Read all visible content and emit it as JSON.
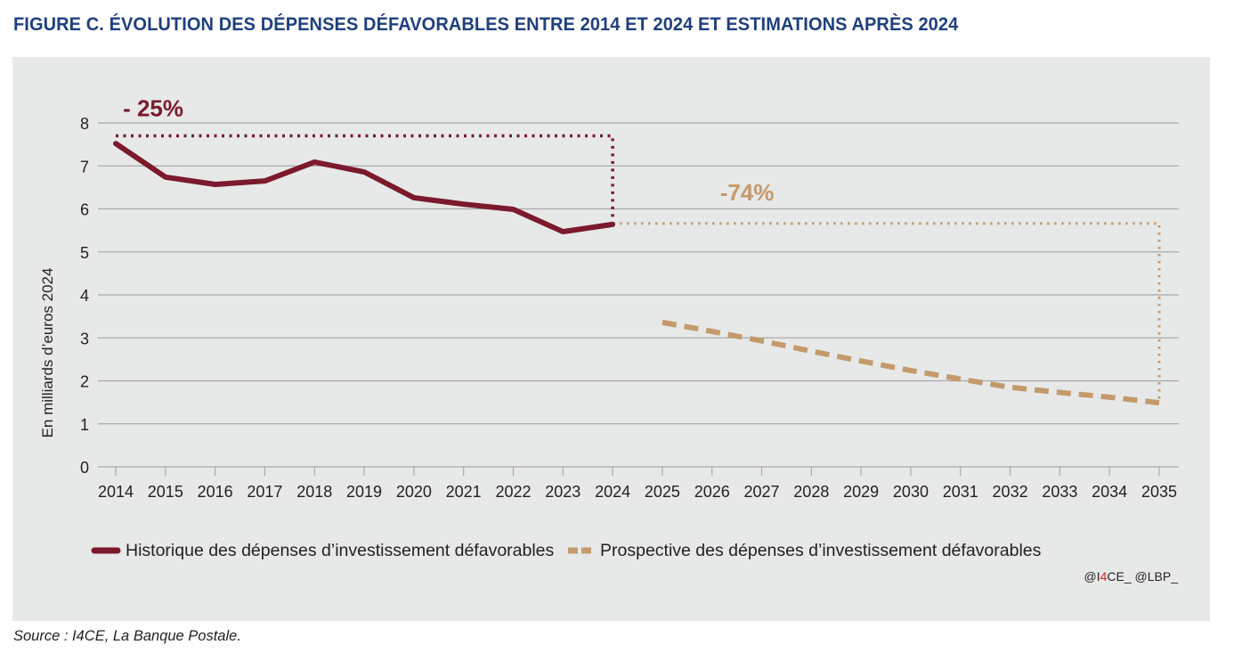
{
  "page": {
    "title": "FIGURE C. ÉVOLUTION DES DÉPENSES DÉFAVORABLES ENTRE 2014 ET 2024 ET ESTIMATIONS APRÈS 2024",
    "source": "Source : I4CE, La Banque Postale.",
    "credit": {
      "part1": "@I",
      "part2": "4",
      "part3": "CE_ @LBP_",
      "accent_color": "#d2232a"
    }
  },
  "chart_data": {
    "type": "line",
    "title": "FIGURE C. ÉVOLUTION DES DÉPENSES DÉFAVORABLES ENTRE 2014 ET 2024 ET ESTIMATIONS APRÈS 2024",
    "xlabel": "",
    "ylabel": "En milliards d’euros 2024",
    "ylim": [
      0,
      8
    ],
    "yticks": [
      0,
      1,
      2,
      3,
      4,
      5,
      6,
      7,
      8
    ],
    "grid": true,
    "legend_position": "bottom",
    "categories": [
      "2014",
      "2015",
      "2016",
      "2017",
      "2018",
      "2019",
      "2020",
      "2021",
      "2022",
      "2023",
      "2024",
      "2025",
      "2026",
      "2027",
      "2028",
      "2029",
      "2030",
      "2031",
      "2032",
      "2033",
      "2034",
      "2035"
    ],
    "series": [
      {
        "name": "Historique des dépenses d’investissement défavorables",
        "style": "solid",
        "color": "#7b1a2c",
        "x": [
          "2014",
          "2015",
          "2016",
          "2017",
          "2018",
          "2019",
          "2020",
          "2021",
          "2022",
          "2023",
          "2024"
        ],
        "values": [
          7.52,
          6.74,
          6.57,
          6.65,
          7.09,
          6.86,
          6.26,
          6.11,
          5.99,
          5.47,
          5.64
        ]
      },
      {
        "name": "Prospective des dépenses d’investissement défavorables",
        "style": "dashed",
        "color": "#c49a6c",
        "x": [
          "2025",
          "2026",
          "2027",
          "2028",
          "2029",
          "2030",
          "2031",
          "2032",
          "2033",
          "2034",
          "2035"
        ],
        "values": [
          3.36,
          3.15,
          2.93,
          2.69,
          2.46,
          2.24,
          2.04,
          1.85,
          1.73,
          1.62,
          1.49
        ]
      }
    ],
    "annotations": [
      {
        "text": "- 25%",
        "color": "#7b1a2c",
        "bracket": {
          "from": "2014",
          "to": "2024",
          "top": 7.7,
          "bottom": 5.75
        }
      },
      {
        "text": "-74%",
        "color": "#c49a6c",
        "bracket": {
          "from": "2024",
          "to": "2035",
          "top": 5.66,
          "bottom": 1.5
        }
      }
    ]
  }
}
